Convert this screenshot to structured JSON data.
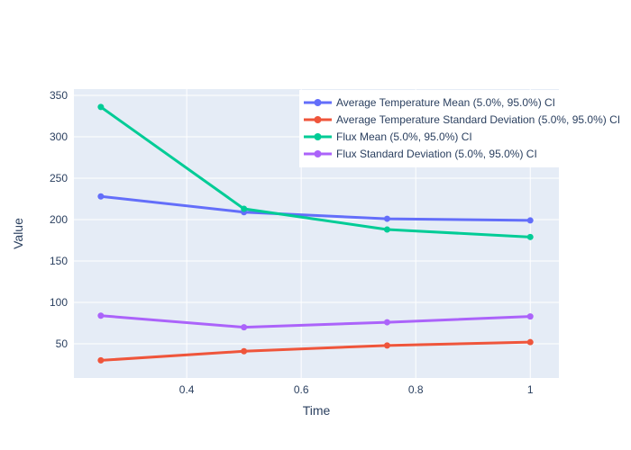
{
  "figure": {
    "paper_bgcolor": "#ffffff",
    "plot_bgcolor": "#e5ecf6",
    "grid_color": "#ffffff",
    "text_color": "#2a3f5f",
    "legend_bgcolor": "#ffffff"
  },
  "chart_data": {
    "type": "line",
    "title": "",
    "xlabel": "Time",
    "ylabel": "Value",
    "x": [
      0.25,
      0.5,
      0.75,
      1.0
    ],
    "series": [
      {
        "name": "Average Temperature Mean (5.0%, 95.0%) CI",
        "color": "#636efa",
        "marker": "circle",
        "values": [
          228,
          209,
          201,
          199
        ]
      },
      {
        "name": "Average Temperature Standard Deviation (5.0%, 95.0%) CI",
        "color": "#ef553b",
        "marker": "circle",
        "values": [
          30,
          41,
          48,
          52
        ]
      },
      {
        "name": "Flux Mean (5.0%, 95.0%) CI",
        "color": "#00cc96",
        "marker": "circle",
        "values": [
          336,
          213,
          188,
          179
        ]
      },
      {
        "name": "Flux Standard Deviation (5.0%, 95.0%) CI",
        "color": "#ab63fa",
        "marker": "circle",
        "values": [
          84,
          70,
          76,
          83
        ]
      }
    ],
    "xticks": {
      "values": [
        0.4,
        0.6,
        0.8,
        1.0
      ],
      "labels": [
        "0.4",
        "0.6",
        "0.8",
        "1"
      ]
    },
    "yticks": {
      "values": [
        50,
        100,
        150,
        200,
        250,
        300,
        350
      ],
      "labels": [
        "50",
        "100",
        "150",
        "200",
        "250",
        "300",
        "350"
      ]
    },
    "xlim": [
      0.203,
      1.05
    ],
    "ylim": [
      8.7,
      357.6
    ],
    "grid": true,
    "legend_position": "top-right"
  }
}
